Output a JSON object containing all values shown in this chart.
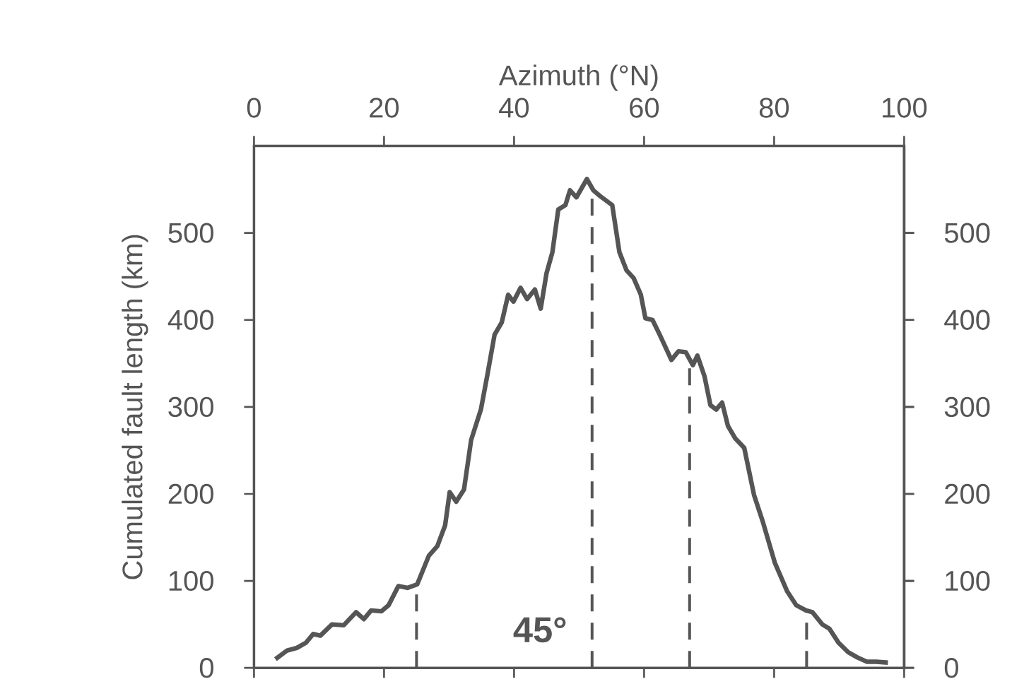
{
  "chart_data": {
    "type": "line",
    "xlabel": "Azimuth (°N)",
    "ylabel": "Cumulated fault length (km)",
    "xlim": [
      0,
      100
    ],
    "xticks": [
      0,
      20,
      40,
      60,
      80,
      100
    ],
    "ylim": [
      0,
      600
    ],
    "yticks": [
      0,
      100,
      200,
      300,
      400,
      500
    ],
    "y2lim": [
      0,
      600
    ],
    "y2ticks": [
      0,
      100,
      200,
      300,
      400,
      500
    ],
    "grid": false,
    "marker": "none",
    "line_style": "solid",
    "x": [
      3.3,
      5.1,
      6.6,
      8.0,
      9.1,
      10.2,
      12.0,
      13.8,
      15.7,
      16.9,
      18.0,
      19.6,
      20.7,
      22.2,
      23.6,
      25.1,
      26.9,
      28.2,
      29.4,
      30.1,
      31.1,
      32.3,
      33.4,
      34.9,
      35.9,
      37.0,
      38.1,
      39.1,
      39.9,
      41.0,
      42.0,
      43.2,
      44.1,
      45.0,
      45.9,
      46.8,
      47.9,
      48.6,
      49.6,
      51.2,
      52.2,
      53.3,
      55.1,
      56.2,
      57.3,
      58.4,
      59.5,
      60.2,
      61.3,
      62.4,
      64.2,
      65.3,
      66.4,
      67.5,
      68.2,
      69.3,
      70.2,
      71.1,
      72.0,
      72.9,
      74.0,
      75.4,
      76.9,
      78.3,
      80.1,
      82.0,
      83.4,
      84.9,
      85.9,
      87.4,
      88.5,
      89.9,
      91.4,
      92.8,
      94.3,
      95.7,
      97.5
    ],
    "series": [
      {
        "color": "#555555",
        "values": [
          10,
          20,
          23,
          29,
          39,
          37,
          50,
          49,
          64,
          56,
          66,
          65,
          72,
          94,
          92,
          96,
          129,
          140,
          164,
          202,
          191,
          205,
          262,
          297,
          337,
          383,
          397,
          429,
          421,
          437,
          424,
          435,
          413,
          454,
          478,
          527,
          532,
          549,
          541,
          562,
          549,
          542,
          532,
          478,
          457,
          448,
          429,
          402,
          400,
          383,
          354,
          364,
          363,
          348,
          359,
          335,
          302,
          297,
          305,
          278,
          264,
          253,
          199,
          167,
          121,
          88,
          72,
          66,
          64,
          50,
          45,
          29,
          18,
          12,
          7,
          7,
          6
        ]
      }
    ],
    "ref_lines": [
      {
        "axis": "x",
        "value": 25,
        "line_style": "dashed",
        "color": "#555555"
      },
      {
        "axis": "x",
        "value": 52,
        "line_style": "dashed",
        "color": "#555555"
      },
      {
        "axis": "x",
        "value": 67,
        "line_style": "dashed",
        "color": "#555555"
      },
      {
        "axis": "x",
        "value": 85,
        "line_style": "dashed",
        "color": "#555555"
      }
    ],
    "annotations": [
      "45°"
    ]
  }
}
